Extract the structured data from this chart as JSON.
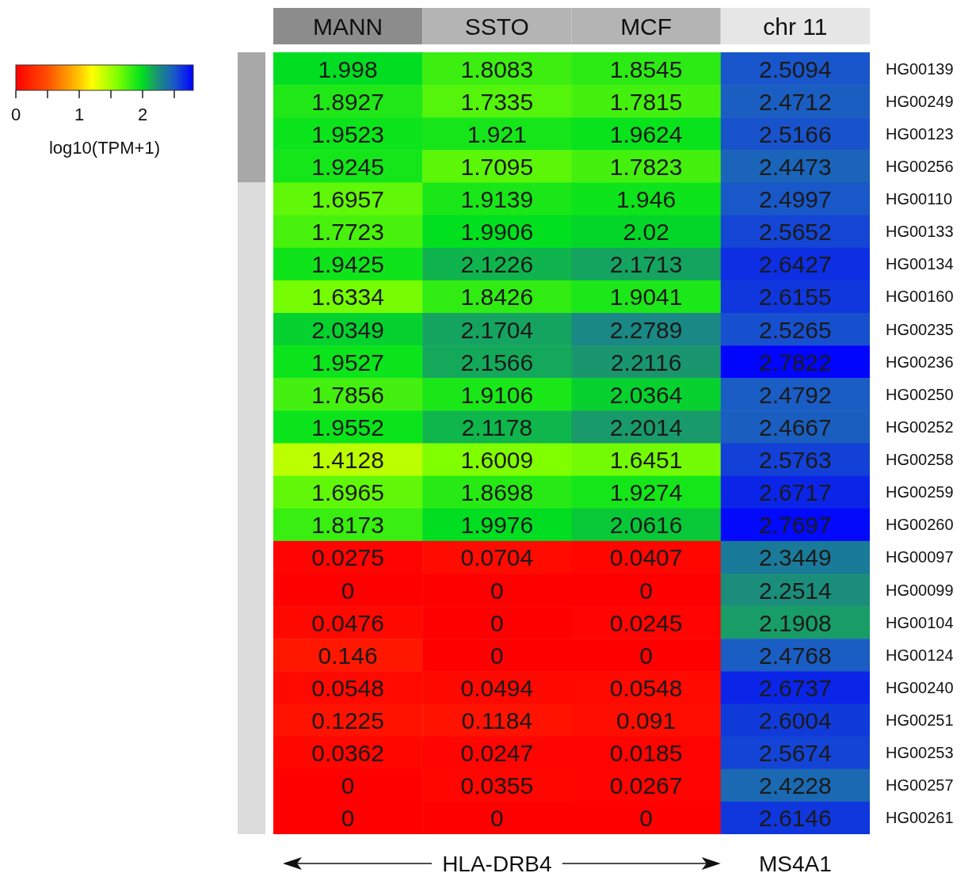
{
  "chart_data": {
    "type": "heatmap",
    "clabel": "log10(TPM+1)",
    "clim": [
      0,
      2.8
    ],
    "cticks": [
      0,
      {
        "value": 0.5,
        "label": null
      },
      1,
      {
        "value": 1.5,
        "label": null
      },
      2,
      {
        "value": 2.5,
        "label": null
      }
    ],
    "categories": [
      "MANN",
      "SSTO",
      "MCF",
      "chr 11"
    ],
    "y_categories": [
      "HG00139",
      "HG00249",
      "HG00123",
      "HG00256",
      "HG00110",
      "HG00133",
      "HG00134",
      "HG00160",
      "HG00235",
      "HG00236",
      "HG00250",
      "HG00252",
      "HG00258",
      "HG00259",
      "HG00260",
      "HG00097",
      "HG00099",
      "HG00104",
      "HG00124",
      "HG00240",
      "HG00251",
      "HG00253",
      "HG00257",
      "HG00261"
    ],
    "cells": [
      [
        1.998,
        1.8083,
        1.8545,
        2.5094
      ],
      [
        1.8927,
        1.7335,
        1.7815,
        2.4712
      ],
      [
        1.9523,
        1.921,
        1.9624,
        2.5166
      ],
      [
        1.9245,
        1.7095,
        1.7823,
        2.4473
      ],
      [
        1.6957,
        1.9139,
        1.946,
        2.4997
      ],
      [
        1.7723,
        1.9906,
        2.02,
        2.5652
      ],
      [
        1.9425,
        2.1226,
        2.1713,
        2.6427
      ],
      [
        1.6334,
        1.8426,
        1.9041,
        2.6155
      ],
      [
        2.0349,
        2.1704,
        2.2789,
        2.5265
      ],
      [
        1.9527,
        2.1566,
        2.2116,
        2.7822
      ],
      [
        1.7856,
        1.9106,
        2.0364,
        2.4792
      ],
      [
        1.9552,
        2.1178,
        2.2014,
        2.4667
      ],
      [
        1.4128,
        1.6009,
        1.6451,
        2.5763
      ],
      [
        1.6965,
        1.8698,
        1.9274,
        2.6717
      ],
      [
        1.8173,
        1.9976,
        2.0616,
        2.7697
      ],
      [
        0.0275,
        0.0704,
        0.0407,
        2.3449
      ],
      [
        0,
        0,
        0,
        2.2514
      ],
      [
        0.0476,
        0,
        0.0245,
        2.1908
      ],
      [
        0.146,
        0,
        0,
        2.4768
      ],
      [
        0.0548,
        0.0494,
        0.0548,
        2.6737
      ],
      [
        0.1225,
        0.1184,
        0.091,
        2.6004
      ],
      [
        0.0362,
        0.0247,
        0.0185,
        2.5674
      ],
      [
        0,
        0.0355,
        0.0267,
        2.4228
      ],
      [
        0,
        0,
        0,
        2.6146
      ]
    ],
    "data_labels": true,
    "annotations": [
      "HLA-DRB4",
      "MS4A1"
    ]
  }
}
